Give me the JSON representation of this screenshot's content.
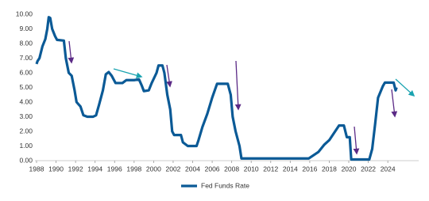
{
  "chart_data": {
    "type": "line",
    "x": [
      1988.0,
      1988.1,
      1988.3,
      1988.6,
      1988.9,
      1989.1,
      1989.25,
      1989.4,
      1989.6,
      1989.9,
      1990.1,
      1990.8,
      1991.0,
      1991.3,
      1991.6,
      1991.9,
      1992.1,
      1992.5,
      1992.8,
      1993.2,
      1993.8,
      1994.1,
      1994.4,
      1994.8,
      1995.1,
      1995.4,
      1995.7,
      1996.1,
      1996.8,
      1997.2,
      1998.0,
      1998.5,
      1998.8,
      1999.0,
      1999.5,
      1999.8,
      2000.3,
      2000.5,
      2000.9,
      2001.1,
      2001.4,
      2001.7,
      2001.9,
      2002.1,
      2002.8,
      2003.0,
      2003.5,
      2004.4,
      2004.6,
      2005.0,
      2005.5,
      2006.0,
      2006.5,
      2007.6,
      2007.9,
      2008.1,
      2008.4,
      2008.8,
      2009.0,
      2015.9,
      2016.9,
      2017.5,
      2018.0,
      2018.5,
      2019.0,
      2019.5,
      2019.8,
      2020.1,
      2020.25,
      2022.1,
      2022.4,
      2022.7,
      2023.0,
      2023.5,
      2023.7,
      2024.6,
      2024.8,
      2024.9
    ],
    "series": [
      {
        "name": "Fed Funds Rate",
        "color": "#0b5a96",
        "values": [
          6.6,
          6.8,
          7.0,
          7.8,
          8.3,
          9.0,
          9.8,
          9.75,
          9.0,
          8.5,
          8.25,
          8.2,
          7.0,
          6.0,
          5.8,
          4.8,
          4.0,
          3.7,
          3.1,
          3.0,
          3.0,
          3.1,
          3.8,
          4.8,
          5.9,
          6.05,
          5.8,
          5.3,
          5.3,
          5.5,
          5.5,
          5.55,
          5.1,
          4.75,
          4.8,
          5.3,
          6.0,
          6.5,
          6.5,
          6.0,
          4.5,
          3.5,
          2.0,
          1.75,
          1.75,
          1.25,
          1.0,
          1.0,
          1.4,
          2.3,
          3.2,
          4.3,
          5.25,
          5.25,
          4.5,
          3.0,
          2.0,
          1.0,
          0.15,
          0.15,
          0.6,
          1.1,
          1.4,
          1.9,
          2.4,
          2.4,
          1.6,
          1.6,
          0.08,
          0.08,
          0.8,
          2.5,
          4.3,
          5.1,
          5.33,
          5.33,
          4.8,
          5.0
        ]
      }
    ],
    "xlim": [
      1988,
      2027
    ],
    "xticks": [
      1988,
      1990,
      1992,
      1994,
      1996,
      1998,
      2000,
      2002,
      2004,
      2006,
      2008,
      2010,
      2012,
      2014,
      2016,
      2018,
      2020,
      2022,
      2024
    ],
    "ylim": [
      0,
      10
    ],
    "yticks": [
      {
        "value": 0,
        "label": "0.00"
      },
      {
        "value": 1,
        "label": "1.00"
      },
      {
        "value": 2,
        "label": "2.00"
      },
      {
        "value": 3,
        "label": "3.00"
      },
      {
        "value": 4,
        "label": "4.00"
      },
      {
        "value": 5,
        "label": "5.00"
      },
      {
        "value": 6,
        "label": "6.00"
      },
      {
        "value": 7,
        "label": "7.00"
      },
      {
        "value": 8,
        "label": "8.00"
      },
      {
        "value": 9,
        "label": "9.00"
      },
      {
        "value": 10,
        "label": "10.00"
      }
    ],
    "legend": "bottom"
  }
}
